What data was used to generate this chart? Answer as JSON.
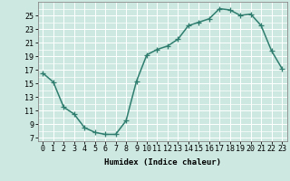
{
  "x": [
    0,
    1,
    2,
    3,
    4,
    5,
    6,
    7,
    8,
    9,
    10,
    11,
    12,
    13,
    14,
    15,
    16,
    17,
    18,
    19,
    20,
    21,
    22,
    23
  ],
  "y": [
    16.5,
    15.2,
    11.5,
    10.5,
    8.5,
    7.8,
    7.5,
    7.5,
    9.5,
    15.3,
    19.2,
    20.0,
    20.5,
    21.5,
    23.5,
    24.0,
    24.5,
    26.0,
    25.8,
    25.0,
    25.2,
    23.5,
    19.8,
    17.2
  ],
  "line_color": "#2e7d6e",
  "marker": "+",
  "marker_size": 4,
  "bg_color": "#cce8e0",
  "grid_color": "#ffffff",
  "xlabel": "Humidex (Indice chaleur)",
  "yticks": [
    7,
    9,
    11,
    13,
    15,
    17,
    19,
    21,
    23,
    25
  ],
  "xticks": [
    0,
    1,
    2,
    3,
    4,
    5,
    6,
    7,
    8,
    9,
    10,
    11,
    12,
    13,
    14,
    15,
    16,
    17,
    18,
    19,
    20,
    21,
    22,
    23
  ],
  "ylim": [
    6.5,
    27.0
  ],
  "xlim": [
    -0.5,
    23.5
  ],
  "label_fontsize": 6.5,
  "tick_fontsize": 6.0,
  "line_width": 1.1,
  "marker_edge_width": 0.9
}
